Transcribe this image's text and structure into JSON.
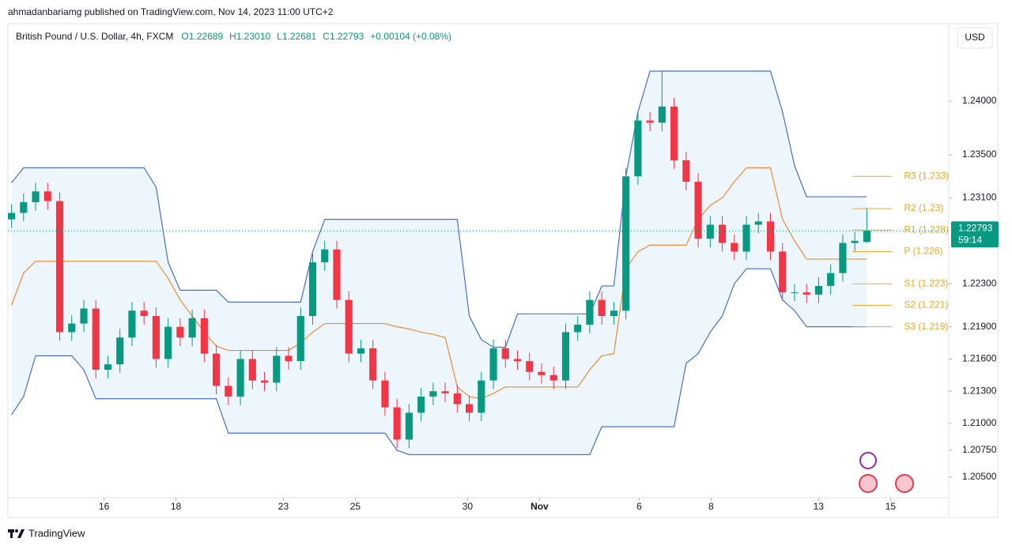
{
  "header": {
    "publisher": "ahmadanbariamg published on TradingView.com, Nov 14, 2023 11:00 UTC+2",
    "brand": "TradingView",
    "currency": "USD"
  },
  "chart_data": {
    "type": "candlestick",
    "title": "British Pound / U.S. Dollar, 4h, FXCM",
    "ohlc_legend": [
      "O1.22689",
      "H1.23010",
      "L1.22681",
      "C1.22793"
    ],
    "change": "+0.00104 (+0.08%)",
    "up_color": "#089981",
    "down_color": "#f23645",
    "open": [
      1.229,
      1.2296,
      1.2306,
      1.2316,
      1.2307,
      1.2185,
      1.2193,
      1.2207,
      1.215,
      1.2155,
      1.218,
      1.2205,
      1.22,
      1.216,
      1.219,
      1.218,
      1.2198,
      1.2165,
      1.2135,
      1.2125,
      1.216,
      1.214,
      1.2138,
      1.2163,
      1.2158,
      1.22,
      1.225,
      1.2262,
      1.2215,
      1.2165,
      1.217,
      1.214,
      1.2115,
      1.2085,
      1.211,
      1.2125,
      1.213,
      1.2128,
      1.2118,
      1.211,
      1.214,
      1.217,
      1.216,
      1.2158,
      1.2148,
      1.2145,
      1.214,
      1.2185,
      1.2192,
      1.2215,
      1.22,
      1.2205,
      1.233,
      1.2382,
      1.238,
      1.2395,
      1.2345,
      1.2325,
      1.2272,
      1.2285,
      1.2268,
      1.226,
      1.2285,
      1.2288,
      1.226,
      1.2222,
      1.2222,
      1.222,
      1.2228,
      1.224,
      1.2268,
      1.22689
    ],
    "high": [
      1.2304,
      1.2314,
      1.2324,
      1.2324,
      1.2315,
      1.2201,
      1.2215,
      1.2215,
      1.2163,
      1.2188,
      1.2213,
      1.2213,
      1.2208,
      1.2198,
      1.2198,
      1.2206,
      1.2206,
      1.2173,
      1.2143,
      1.2168,
      1.2168,
      1.2148,
      1.2171,
      1.2171,
      1.2208,
      1.2258,
      1.227,
      1.227,
      1.2223,
      1.2178,
      1.2178,
      1.2148,
      1.2123,
      1.2118,
      1.2133,
      1.2138,
      1.2138,
      1.2136,
      1.2126,
      1.2148,
      1.2178,
      1.2178,
      1.2168,
      1.2166,
      1.2156,
      1.2153,
      1.2193,
      1.22,
      1.2223,
      1.2223,
      1.2213,
      1.2338,
      1.239,
      1.239,
      1.2428,
      1.2403,
      1.2353,
      1.2333,
      1.2293,
      1.2293,
      1.2276,
      1.2293,
      1.2296,
      1.2296,
      1.2268,
      1.223,
      1.223,
      1.2236,
      1.2248,
      1.2276,
      1.2278,
      1.2301
    ],
    "low": [
      1.2282,
      1.2288,
      1.2298,
      1.2299,
      1.2177,
      1.2177,
      1.2185,
      1.2142,
      1.2142,
      1.2147,
      1.2172,
      1.2192,
      1.2152,
      1.2152,
      1.2172,
      1.2172,
      1.2157,
      1.2127,
      1.2117,
      1.2117,
      1.2132,
      1.213,
      1.213,
      1.215,
      1.215,
      1.2192,
      1.2242,
      1.2207,
      1.2157,
      1.2157,
      1.2132,
      1.2107,
      1.2077,
      1.2077,
      1.2102,
      1.2117,
      1.212,
      1.211,
      1.2102,
      1.2102,
      1.2132,
      1.2152,
      1.215,
      1.214,
      1.2137,
      1.2132,
      1.2132,
      1.2177,
      1.2184,
      1.2192,
      1.2192,
      1.2197,
      1.2322,
      1.2372,
      1.2372,
      1.2337,
      1.2317,
      1.2264,
      1.2264,
      1.226,
      1.2252,
      1.2252,
      1.2277,
      1.2252,
      1.2214,
      1.2214,
      1.2212,
      1.2212,
      1.222,
      1.2232,
      1.226,
      1.22681
    ],
    "close": [
      1.2296,
      1.2306,
      1.2316,
      1.2307,
      1.2185,
      1.2193,
      1.2207,
      1.215,
      1.2155,
      1.218,
      1.2205,
      1.22,
      1.216,
      1.219,
      1.218,
      1.2198,
      1.2165,
      1.2135,
      1.2125,
      1.216,
      1.214,
      1.2138,
      1.2163,
      1.2158,
      1.22,
      1.225,
      1.2262,
      1.2215,
      1.2165,
      1.217,
      1.214,
      1.2115,
      1.2085,
      1.211,
      1.2125,
      1.213,
      1.2128,
      1.2118,
      1.211,
      1.214,
      1.217,
      1.216,
      1.2158,
      1.2148,
      1.2145,
      1.214,
      1.2185,
      1.2192,
      1.2215,
      1.22,
      1.2205,
      1.233,
      1.2382,
      1.238,
      1.2395,
      1.2345,
      1.2325,
      1.2272,
      1.2285,
      1.2268,
      1.226,
      1.2285,
      1.2288,
      1.226,
      1.2222,
      1.2222,
      1.222,
      1.2228,
      1.224,
      1.2268,
      1.227,
      1.22793
    ],
    "indicators": {
      "upper": {
        "color": "#4a6fd1",
        "values": [
          1.2324,
          1.2338,
          1.2338,
          1.2338,
          1.2338,
          1.2338,
          1.2338,
          1.2338,
          1.2338,
          1.2338,
          1.2338,
          1.2338,
          1.232,
          1.225,
          1.2224,
          1.2224,
          1.2224,
          1.2224,
          1.2213,
          1.2213,
          1.2213,
          1.2213,
          1.2213,
          1.2213,
          1.2213,
          1.226,
          1.229,
          1.229,
          1.229,
          1.229,
          1.229,
          1.229,
          1.229,
          1.229,
          1.229,
          1.229,
          1.229,
          1.229,
          1.22,
          1.2178,
          1.2171,
          1.2171,
          1.2202,
          1.2202,
          1.2202,
          1.2202,
          1.2202,
          1.2202,
          1.2202,
          1.2228,
          1.2228,
          1.233,
          1.239,
          1.2428,
          1.2428,
          1.2428,
          1.2428,
          1.2428,
          1.2428,
          1.2428,
          1.2428,
          1.2428,
          1.2428,
          1.2428,
          1.239,
          1.234,
          1.2311,
          1.2311,
          1.2311,
          1.2311,
          1.2311,
          1.2311
        ]
      },
      "lower": {
        "color": "#4a6fd1",
        "values": [
          1.2108,
          1.2125,
          1.2163,
          1.2163,
          1.2163,
          1.2163,
          1.215,
          1.2123,
          1.2123,
          1.2123,
          1.2123,
          1.2123,
          1.2123,
          1.2123,
          1.2123,
          1.2123,
          1.2123,
          1.2123,
          1.2091,
          1.2091,
          1.2091,
          1.2091,
          1.2091,
          1.2091,
          1.2091,
          1.2091,
          1.2091,
          1.2091,
          1.2091,
          1.2091,
          1.2091,
          1.2091,
          1.2075,
          1.2071,
          1.2071,
          1.2071,
          1.2071,
          1.2071,
          1.2071,
          1.2071,
          1.2071,
          1.2071,
          1.2071,
          1.2071,
          1.2071,
          1.2071,
          1.2071,
          1.2071,
          1.2071,
          1.2097,
          1.2097,
          1.2097,
          1.2097,
          1.2097,
          1.2097,
          1.2097,
          1.2156,
          1.2165,
          1.2185,
          1.22,
          1.223,
          1.2244,
          1.2244,
          1.2244,
          1.2215,
          1.2205,
          1.219,
          1.219,
          1.219,
          1.219,
          1.219,
          1.219
        ]
      },
      "basis": {
        "color": "#f08c2e",
        "values": [
          1.221,
          1.224,
          1.2251,
          1.2251,
          1.2251,
          1.2251,
          1.2251,
          1.2251,
          1.2251,
          1.2251,
          1.2251,
          1.2251,
          1.2251,
          1.2235,
          1.2215,
          1.22,
          1.2185,
          1.2172,
          1.2168,
          1.2168,
          1.2168,
          1.2168,
          1.2168,
          1.2168,
          1.2175,
          1.2185,
          1.2193,
          1.2193,
          1.2193,
          1.2193,
          1.2193,
          1.2193,
          1.219,
          1.2188,
          1.2185,
          1.2183,
          1.218,
          1.2134,
          1.2125,
          1.2123,
          1.2128,
          1.2134,
          1.2134,
          1.2134,
          1.2134,
          1.2134,
          1.2134,
          1.2134,
          1.215,
          1.2163,
          1.2165,
          1.2244,
          1.226,
          1.2266,
          1.2266,
          1.2266,
          1.2266,
          1.229,
          1.2303,
          1.231,
          1.2325,
          1.2338,
          1.2338,
          1.2338,
          1.229,
          1.227,
          1.2253,
          1.2253,
          1.2253,
          1.2253,
          1.2253,
          1.2253
        ]
      }
    },
    "band_fill": "#e3f0fb",
    "pivot_color": "#f5a623",
    "pivots": [
      {
        "label": "R3 (1.233)",
        "value": 1.233
      },
      {
        "label": "R2 (1.23)",
        "value": 1.23
      },
      {
        "label": "R1 (1.228)",
        "value": 1.228
      },
      {
        "label": "P (1.226)",
        "value": 1.226
      },
      {
        "label": "S1 (1.223)",
        "value": 1.223
      },
      {
        "label": "S2 (1.221)",
        "value": 1.221
      },
      {
        "label": "S3 (1.219)",
        "value": 1.219
      }
    ],
    "last_price": 1.22793,
    "countdown": "59:14",
    "ylim": [
      1.20309,
      1.24721
    ],
    "yticks": [
      {
        "value": 1.24,
        "label": "1.24000"
      },
      {
        "value": 1.235,
        "label": "1.23500"
      },
      {
        "value": 1.231,
        "label": "1.23100"
      },
      {
        "value": 1.223,
        "label": "1.22300"
      },
      {
        "value": 1.219,
        "label": "1.21900"
      },
      {
        "value": 1.216,
        "label": "1.21600"
      },
      {
        "value": 1.213,
        "label": "1.21300"
      },
      {
        "value": 1.21,
        "label": "1.21000"
      },
      {
        "value": 1.2075,
        "label": "1.20750"
      },
      {
        "value": 1.205,
        "label": "1.20500"
      }
    ],
    "xlim": [
      -0.3,
      77.8
    ],
    "xticks": [
      {
        "value": 7.68,
        "label": "16"
      },
      {
        "value": 13.65,
        "label": "18"
      },
      {
        "value": 22.57,
        "label": "23"
      },
      {
        "value": 28.54,
        "label": "25"
      },
      {
        "value": 37.86,
        "label": "30"
      },
      {
        "value": 43.83,
        "label": "Nov"
      },
      {
        "value": 52.1,
        "label": "6"
      },
      {
        "value": 58.07,
        "label": "8"
      },
      {
        "value": 66.99,
        "label": "13"
      },
      {
        "value": 72.97,
        "label": "15"
      }
    ]
  }
}
